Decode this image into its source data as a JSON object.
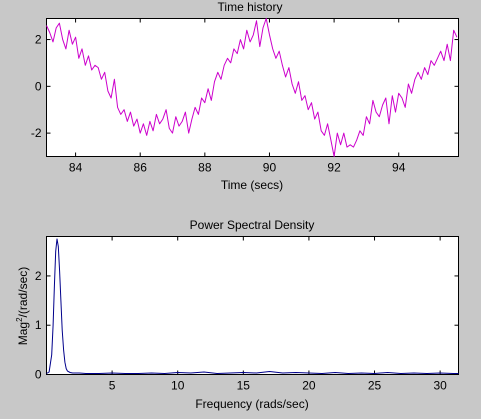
{
  "window": {
    "background": "#c8c8c8"
  },
  "chart_data": [
    {
      "type": "line",
      "title": "Time history",
      "xlabel": "Time (secs)",
      "ylabel": "",
      "xlim": [
        83.1,
        95.85
      ],
      "ylim": [
        -3.0,
        2.9
      ],
      "x_ticks": [
        84,
        86,
        88,
        90,
        92,
        94
      ],
      "x_tick_labels": [
        "84",
        "86",
        "88",
        "90",
        "92",
        "94"
      ],
      "y_ticks": [
        -2,
        0,
        2
      ],
      "y_tick_labels": [
        "-2",
        "0",
        "2"
      ],
      "grid": false,
      "legend": "none",
      "series": [
        {
          "color": "#cc00cc",
          "x": [
            83.1,
            83.2,
            83.3,
            83.4,
            83.5,
            83.6,
            83.7,
            83.8,
            83.9,
            84.0,
            84.1,
            84.2,
            84.3,
            84.4,
            84.5,
            84.6,
            84.7,
            84.8,
            84.9,
            85.0,
            85.1,
            85.2,
            85.3,
            85.4,
            85.5,
            85.6,
            85.7,
            85.8,
            85.9,
            86.0,
            86.1,
            86.2,
            86.3,
            86.4,
            86.5,
            86.6,
            86.7,
            86.8,
            86.9,
            87.0,
            87.1,
            87.2,
            87.3,
            87.4,
            87.5,
            87.6,
            87.7,
            87.8,
            87.9,
            88.0,
            88.1,
            88.2,
            88.3,
            88.4,
            88.5,
            88.6,
            88.7,
            88.8,
            88.9,
            89.0,
            89.1,
            89.2,
            89.3,
            89.4,
            89.5,
            89.6,
            89.7,
            89.8,
            89.9,
            90.0,
            90.1,
            90.2,
            90.3,
            90.4,
            90.5,
            90.6,
            90.7,
            90.8,
            90.9,
            91.0,
            91.1,
            91.2,
            91.3,
            91.4,
            91.5,
            91.6,
            91.7,
            91.8,
            91.9,
            92.0,
            92.1,
            92.2,
            92.3,
            92.4,
            92.5,
            92.6,
            92.7,
            92.8,
            92.9,
            93.0,
            93.1,
            93.2,
            93.3,
            93.4,
            93.5,
            93.6,
            93.7,
            93.8,
            93.9,
            94.0,
            94.1,
            94.2,
            94.3,
            94.4,
            94.5,
            94.6,
            94.7,
            94.8,
            94.9,
            95.0,
            95.1,
            95.2,
            95.3,
            95.4,
            95.5,
            95.6,
            95.7,
            95.8
          ],
          "y": [
            2.6,
            2.3,
            1.9,
            2.5,
            2.7,
            2.0,
            1.6,
            2.4,
            1.8,
            2.1,
            1.2,
            1.6,
            0.9,
            1.3,
            0.7,
            0.9,
            0.8,
            0.3,
            0.6,
            -0.2,
            -0.5,
            0.3,
            -0.9,
            -1.2,
            -1.0,
            -1.5,
            -1.1,
            -1.7,
            -1.4,
            -2.0,
            -1.6,
            -2.1,
            -1.5,
            -1.9,
            -1.2,
            -1.6,
            -1.4,
            -1.0,
            -1.8,
            -2.0,
            -1.3,
            -1.7,
            -1.5,
            -1.1,
            -2.0,
            -1.4,
            -0.9,
            -1.2,
            -0.5,
            -0.7,
            -0.1,
            -0.6,
            0.2,
            0.6,
            0.3,
            0.9,
            1.2,
            1.0,
            1.6,
            1.4,
            2.0,
            1.6,
            2.4,
            1.9,
            2.2,
            2.8,
            1.7,
            2.5,
            2.9,
            2.2,
            1.6,
            1.2,
            1.5,
            0.9,
            0.4,
            0.8,
            0.1,
            -0.3,
            0.2,
            -0.6,
            -0.4,
            -1.0,
            -0.7,
            -1.4,
            -1.1,
            -1.9,
            -2.1,
            -1.6,
            -2.3,
            -3.0,
            -2.0,
            -2.5,
            -2.0,
            -2.6,
            -2.5,
            -2.6,
            -2.3,
            -1.9,
            -2.1,
            -1.3,
            -1.6,
            -0.6,
            -1.1,
            -1.3,
            -0.8,
            -0.5,
            -1.6,
            -0.4,
            -1.1,
            -0.3,
            -0.5,
            -0.9,
            0.1,
            -0.3,
            0.3,
            0.6,
            0.3,
            0.8,
            0.5,
            1.1,
            0.9,
            1.2,
            1.5,
            1.1,
            1.8,
            1.1,
            2.4,
            2.1
          ]
        }
      ]
    },
    {
      "type": "line",
      "title": "Power Spectral Density",
      "xlabel": "Frequency (rads/sec)",
      "ylabel_base": "Mag",
      "ylabel_sup": "2",
      "ylabel_rest": "/(rad/sec)",
      "xlim": [
        0,
        31.4
      ],
      "ylim": [
        0,
        2.8
      ],
      "x_ticks": [
        5,
        10,
        15,
        20,
        25,
        30
      ],
      "x_tick_labels": [
        "5",
        "10",
        "15",
        "20",
        "25",
        "30"
      ],
      "y_ticks": [
        0,
        1,
        2
      ],
      "y_tick_labels": [
        "0",
        "1",
        "2"
      ],
      "grid": false,
      "legend": "none",
      "series": [
        {
          "color": "#00008b",
          "x": [
            0,
            0.2,
            0.4,
            0.5,
            0.6,
            0.7,
            0.8,
            0.9,
            1.0,
            1.1,
            1.2,
            1.3,
            1.4,
            1.5,
            1.6,
            1.8,
            2.0,
            2.5,
            3,
            4,
            5,
            6,
            7,
            8,
            9,
            10,
            11,
            12,
            13,
            14,
            15,
            16,
            17,
            18,
            19,
            20,
            21,
            22,
            23,
            24,
            25,
            26,
            27,
            28,
            29,
            30,
            31,
            31.4
          ],
          "y": [
            0.02,
            0.05,
            0.4,
            1.0,
            1.8,
            2.5,
            2.75,
            2.6,
            2.1,
            1.5,
            0.9,
            0.5,
            0.25,
            0.12,
            0.07,
            0.04,
            0.03,
            0.03,
            0.02,
            0.02,
            0.03,
            0.02,
            0.02,
            0.03,
            0.02,
            0.04,
            0.03,
            0.05,
            0.02,
            0.03,
            0.04,
            0.03,
            0.06,
            0.03,
            0.04,
            0.03,
            0.02,
            0.04,
            0.02,
            0.03,
            0.02,
            0.04,
            0.02,
            0.03,
            0.02,
            0.03,
            0.02,
            0.02
          ]
        }
      ]
    }
  ]
}
